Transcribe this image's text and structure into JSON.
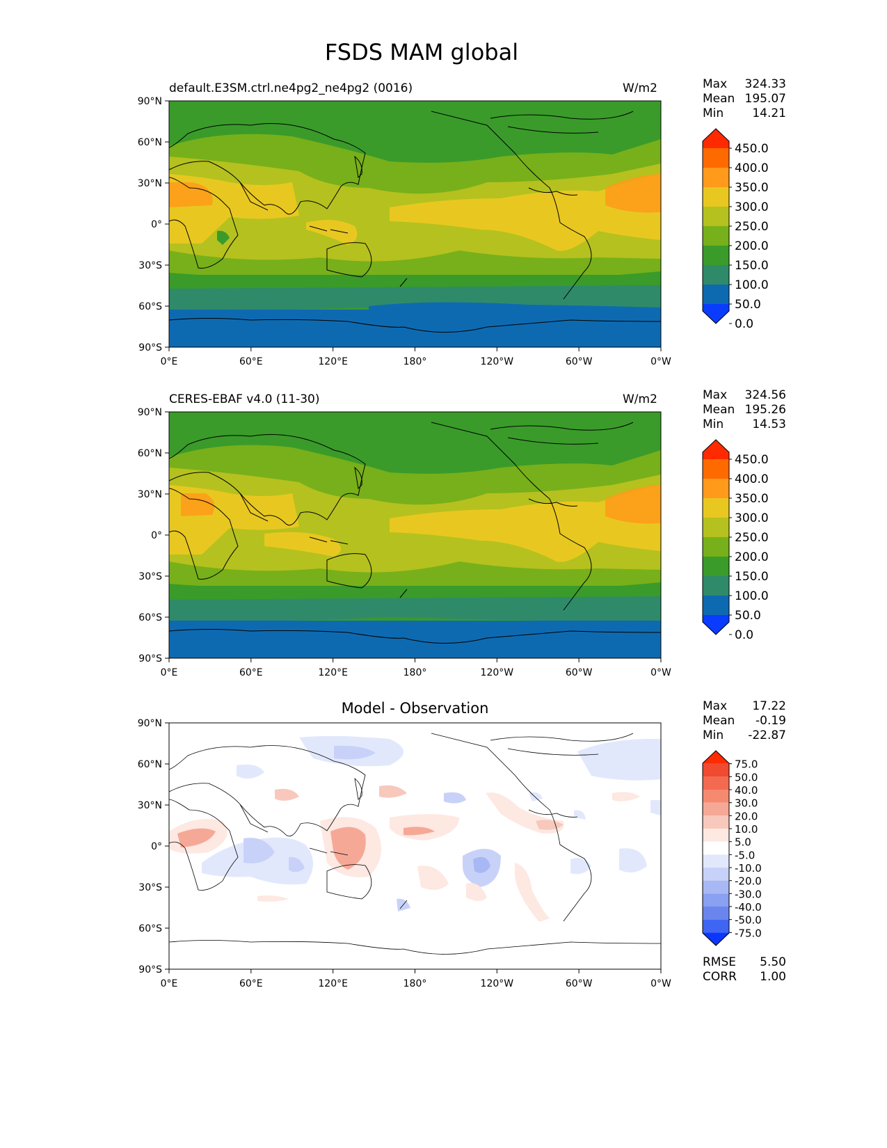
{
  "figure_title": "FSDS MAM global",
  "lat_labels": [
    "90°N",
    "60°N",
    "30°N",
    "0°",
    "30°S",
    "60°S",
    "90°S"
  ],
  "lon_labels": [
    "0°E",
    "60°E",
    "120°E",
    "180°",
    "120°W",
    "60°W",
    "0°W"
  ],
  "panels": [
    {
      "id": "model",
      "left_title": "default.E3SM.ctrl.ne4pg2_ne4pg2 (0016)",
      "center_title": "",
      "units": "W/m2",
      "stats": {
        "max_label": "Max",
        "max": "324.33",
        "mean_label": "Mean",
        "mean": "195.07",
        "min_label": "Min",
        "min": "14.21"
      },
      "colorbar": {
        "labels": [
          "450.0",
          "400.0",
          "350.0",
          "300.0",
          "250.0",
          "200.0",
          "150.0",
          "100.0",
          "50.0",
          "0.0"
        ],
        "colors": [
          "#ff2a00",
          "#ff6a00",
          "#ff9a1a",
          "#e8c820",
          "#b5c11e",
          "#77b01a",
          "#3a9b2a",
          "#2f8a6a",
          "#0e6ab0",
          "#0a3cff"
        ]
      }
    },
    {
      "id": "obs",
      "left_title": "CERES-EBAF v4.0 (11-30)",
      "center_title": "",
      "units": "W/m2",
      "stats": {
        "max_label": "Max",
        "max": "324.56",
        "mean_label": "Mean",
        "mean": "195.26",
        "min_label": "Min",
        "min": "14.53"
      },
      "colorbar": {
        "labels": [
          "450.0",
          "400.0",
          "350.0",
          "300.0",
          "250.0",
          "200.0",
          "150.0",
          "100.0",
          "50.0",
          "0.0"
        ],
        "colors": [
          "#ff2a00",
          "#ff6a00",
          "#ff9a1a",
          "#e8c820",
          "#b5c11e",
          "#77b01a",
          "#3a9b2a",
          "#2f8a6a",
          "#0e6ab0",
          "#0a3cff"
        ]
      }
    },
    {
      "id": "diff",
      "left_title": "",
      "center_title": "Model - Observation",
      "units": "",
      "stats": {
        "max_label": "Max",
        "max": "17.22",
        "mean_label": "Mean",
        "mean": "-0.19",
        "min_label": "Min",
        "min": "-22.87"
      },
      "colorbar": {
        "labels": [
          "75.0",
          "50.0",
          "40.0",
          "30.0",
          "20.0",
          "10.0",
          "5.0",
          "-5.0",
          "-10.0",
          "-20.0",
          "-30.0",
          "-40.0",
          "-50.0",
          "-75.0"
        ],
        "colors": [
          "#ff2a00",
          "#f04a30",
          "#f46a50",
          "#f58a70",
          "#f6a896",
          "#f8c8bc",
          "#fde8e2",
          "#ffffff",
          "#e2e8fc",
          "#c8d2f8",
          "#a8b8f4",
          "#8aa0f0",
          "#6a86ee",
          "#3f66f2",
          "#0a36ff"
        ]
      },
      "rmse_label": "RMSE",
      "rmse": "5.50",
      "corr_label": "CORR",
      "corr": "1.00"
    }
  ]
}
